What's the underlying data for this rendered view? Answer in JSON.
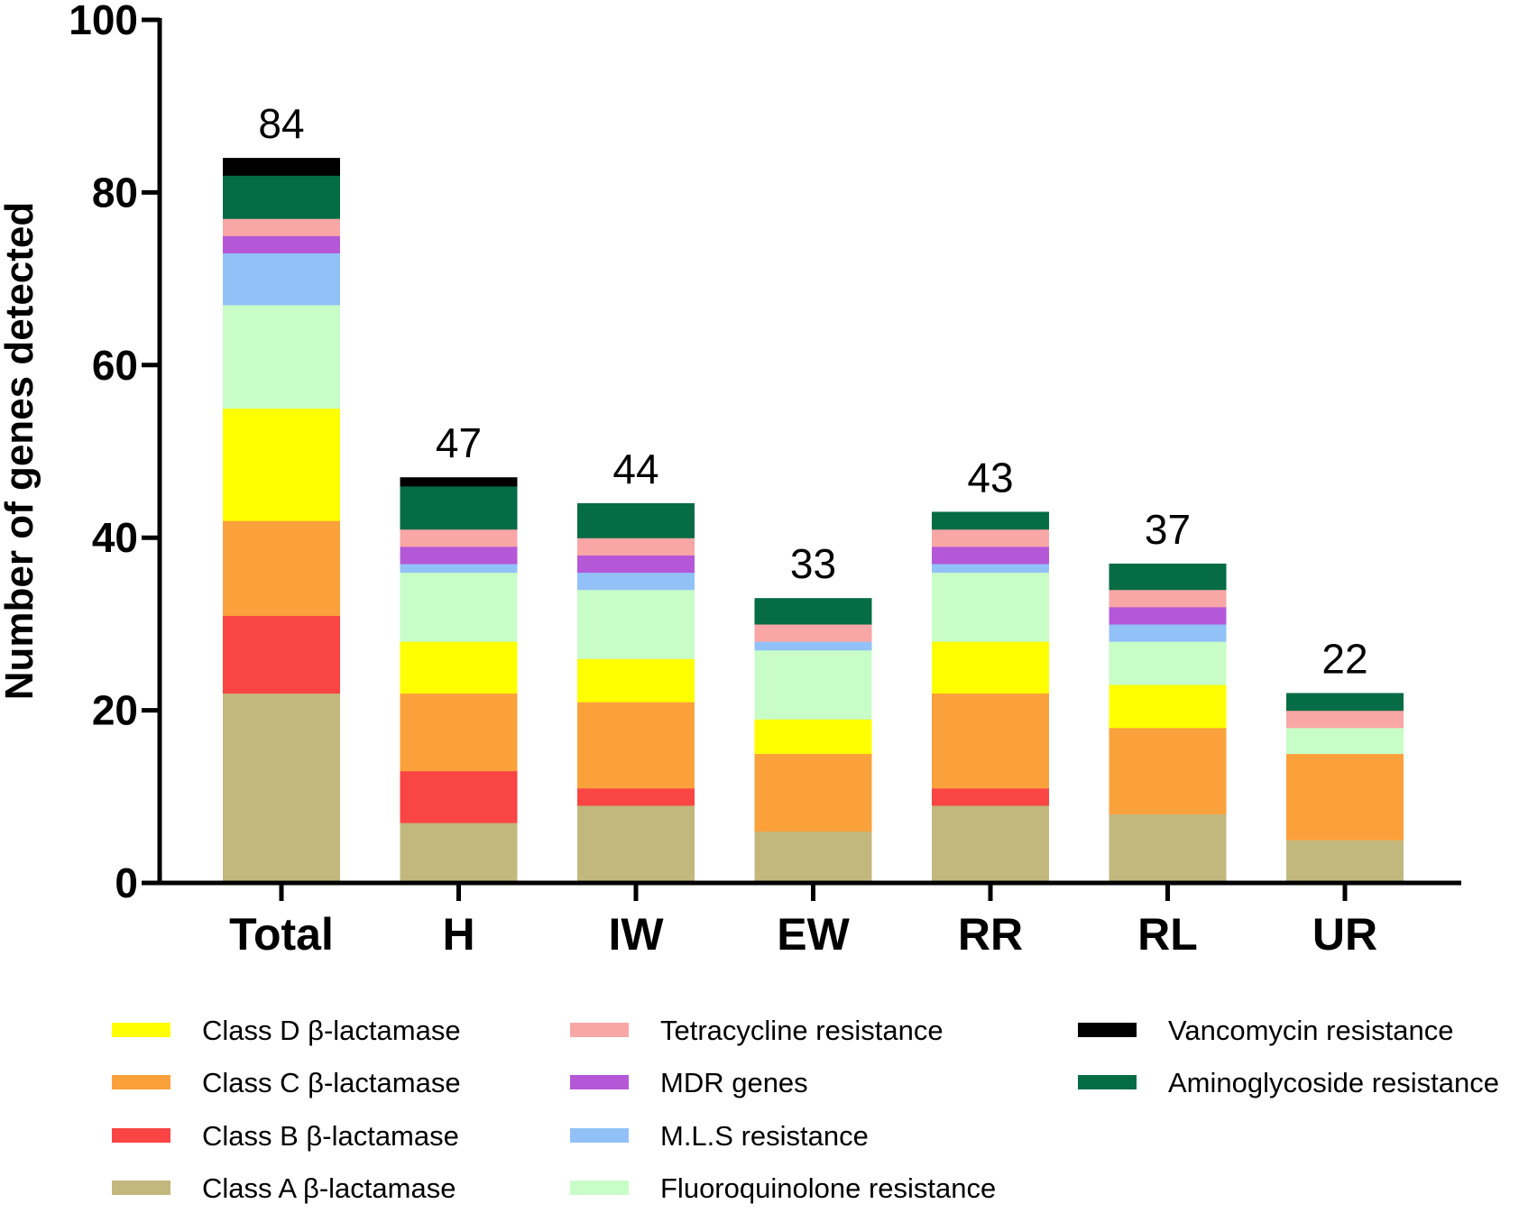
{
  "chart_data": {
    "type": "bar",
    "stacked": true,
    "title": "",
    "xlabel": "",
    "ylabel": "Number of genes detected",
    "ylim": [
      0,
      100
    ],
    "yticks": [
      0,
      20,
      40,
      60,
      80,
      100
    ],
    "grid": false,
    "legend_position": "bottom",
    "categories": [
      "Total",
      "H",
      "IW",
      "EW",
      "RR",
      "RL",
      "UR"
    ],
    "totals": [
      84,
      47,
      44,
      33,
      43,
      37,
      22
    ],
    "series": [
      {
        "name": "Class A β-lactamase",
        "color": "#c2b87e",
        "values": [
          22,
          7,
          9,
          6,
          9,
          8,
          5
        ]
      },
      {
        "name": "Class B β-lactamase",
        "color": "#f94544",
        "values": [
          9,
          6,
          2,
          0,
          2,
          0,
          0
        ]
      },
      {
        "name": "Class C β-lactamase",
        "color": "#fba13c",
        "values": [
          11,
          9,
          10,
          9,
          11,
          10,
          10
        ]
      },
      {
        "name": "Class D β-lactamase",
        "color": "#ffff00",
        "values": [
          13,
          6,
          5,
          4,
          6,
          5,
          0
        ]
      },
      {
        "name": "Fluoroquinolone resistance",
        "color": "#c8fdc8",
        "values": [
          12,
          8,
          8,
          8,
          8,
          5,
          3
        ]
      },
      {
        "name": "M.L.S resistance",
        "color": "#92c1f8",
        "values": [
          6,
          1,
          2,
          1,
          1,
          2,
          0
        ]
      },
      {
        "name": "MDR genes",
        "color": "#b558d8",
        "values": [
          2,
          2,
          2,
          0,
          2,
          2,
          0
        ]
      },
      {
        "name": "Tetracycline resistance",
        "color": "#f9a6a6",
        "values": [
          2,
          2,
          2,
          2,
          2,
          2,
          2
        ]
      },
      {
        "name": "Aminoglycoside resistance",
        "color": "#056c45",
        "values": [
          5,
          5,
          4,
          3,
          2,
          3,
          2
        ]
      },
      {
        "name": "Vancomycin resistance",
        "color": "#000000",
        "values": [
          2,
          1,
          0,
          0,
          0,
          0,
          0
        ]
      }
    ],
    "legend_columns": [
      [
        "Class D β-lactamase",
        "Class C β-lactamase",
        "Class B β-lactamase",
        "Class A β-lactamase"
      ],
      [
        "Tetracycline resistance",
        "MDR genes",
        "M.L.S resistance",
        "Fluoroquinolone resistance"
      ],
      [
        "Vancomycin resistance",
        "Aminoglycoside resistance"
      ]
    ]
  }
}
